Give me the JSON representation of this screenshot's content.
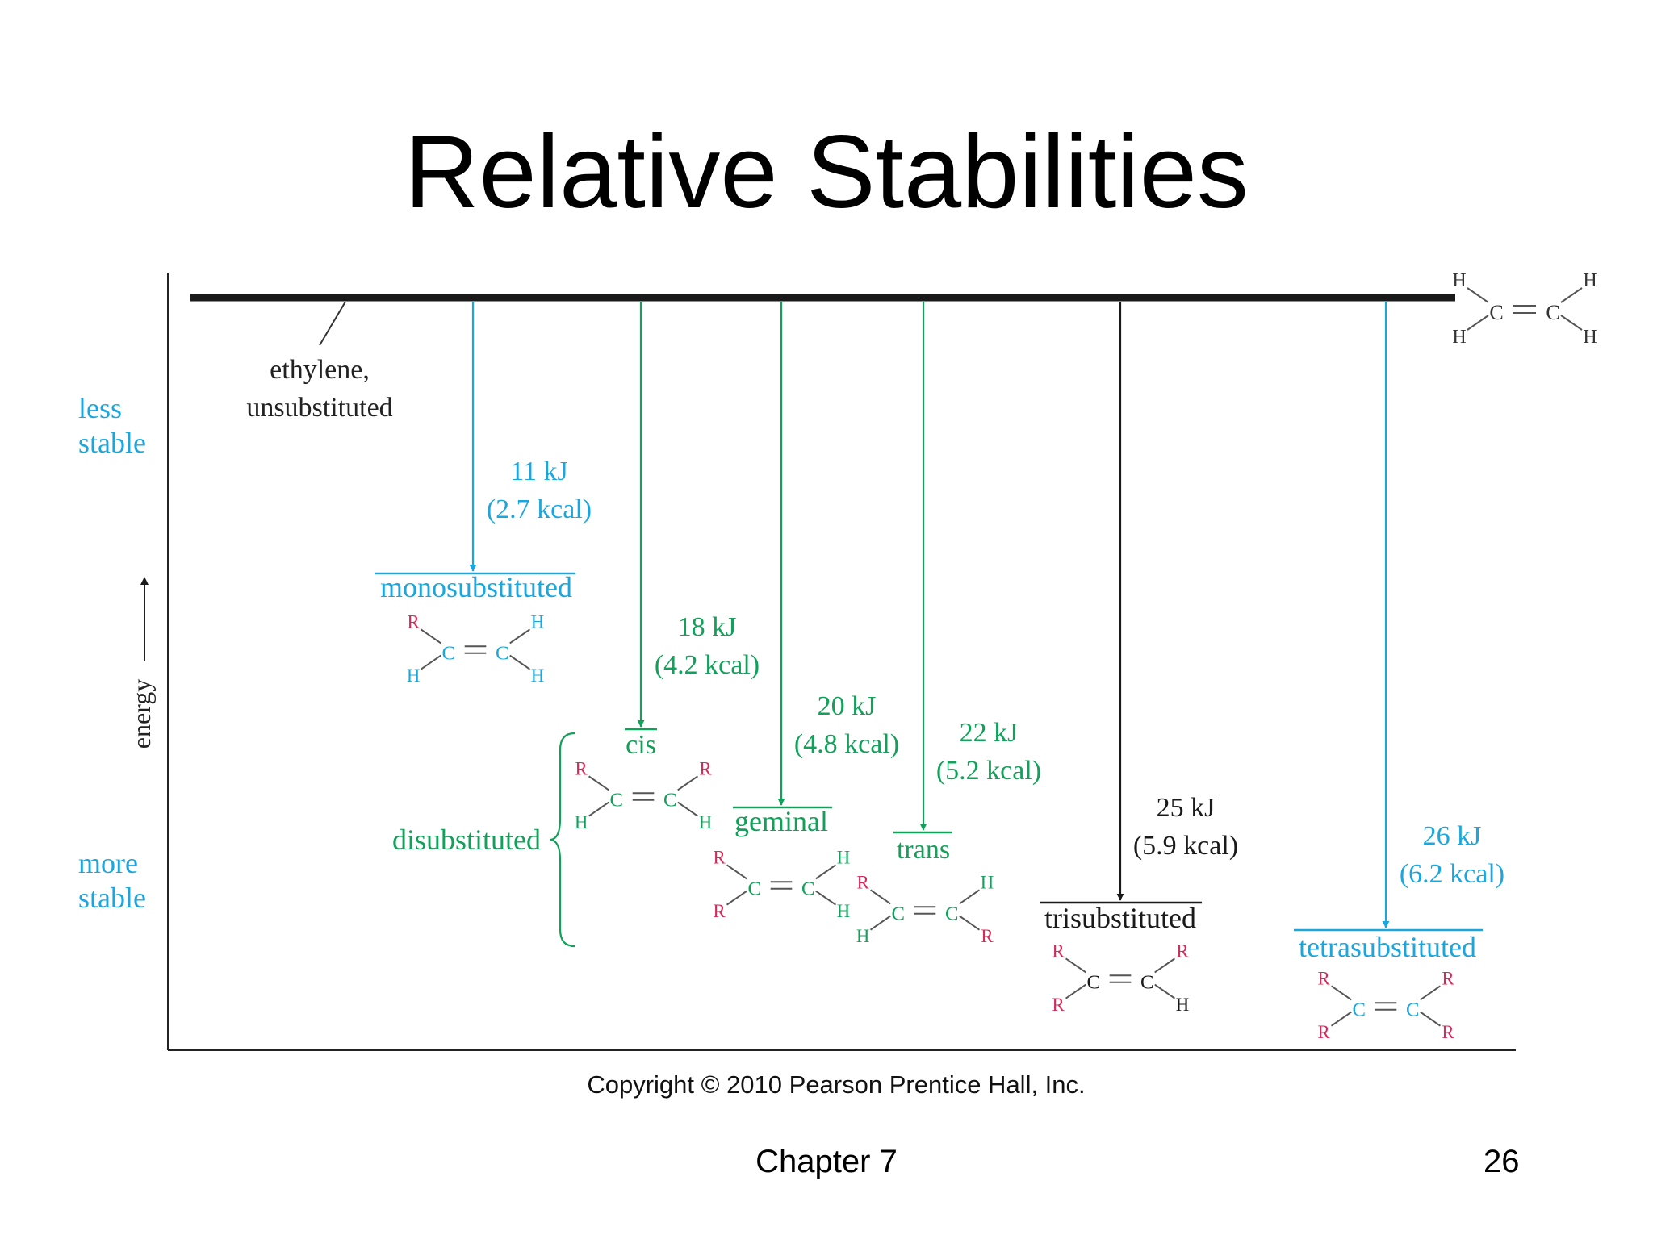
{
  "slide": {
    "title": "Relative Stabilities",
    "chapter": "Chapter 7",
    "page_number": "26"
  },
  "colors": {
    "blue": "#1ba7de",
    "green": "#12a05a",
    "red": "#d62a5a",
    "black": "#1a1a1a"
  },
  "diagram": {
    "axis_label": "energy",
    "less_stable": [
      "less",
      "stable"
    ],
    "more_stable": [
      "more",
      "stable"
    ],
    "copyright": "Copyright © 2010 Pearson Prentice Hall, Inc.",
    "ethylene_label": [
      "ethylene,",
      "unsubstituted"
    ],
    "disubstituted_label": "disubstituted",
    "levels": [
      {
        "id": "mono",
        "label": "monosubstituted",
        "energy": [
          "11 kJ",
          "(2.7 kcal)"
        ],
        "color": "blue",
        "atoms": [
          "R",
          "H",
          "H",
          "H"
        ]
      },
      {
        "id": "cis",
        "label": "cis",
        "energy": [
          "18 kJ",
          "(4.2 kcal)"
        ],
        "color": "green",
        "atoms": [
          "R",
          "H",
          "R",
          "H"
        ]
      },
      {
        "id": "geminal",
        "label": "geminal",
        "energy": [
          "20 kJ",
          "(4.8 kcal)"
        ],
        "color": "green",
        "atoms": [
          "R",
          "R",
          "H",
          "H"
        ]
      },
      {
        "id": "trans",
        "label": "trans",
        "energy": [
          "22 kJ",
          "(5.2 kcal)"
        ],
        "color": "green",
        "atoms": [
          "R",
          "H",
          "H",
          "R"
        ]
      },
      {
        "id": "tri",
        "label": "trisubstituted",
        "energy": [
          "25 kJ",
          "(5.9 kcal)"
        ],
        "color": "black",
        "atoms": [
          "R",
          "R",
          "R",
          "H"
        ]
      },
      {
        "id": "tetra",
        "label": "tetrasubstituted",
        "energy": [
          "26 kJ",
          "(6.2 kcal)"
        ],
        "color": "blue",
        "atoms": [
          "R",
          "R",
          "R",
          "R"
        ]
      }
    ],
    "ethylene_atoms": [
      "H",
      "H",
      "H",
      "H"
    ],
    "carbon": "C"
  }
}
